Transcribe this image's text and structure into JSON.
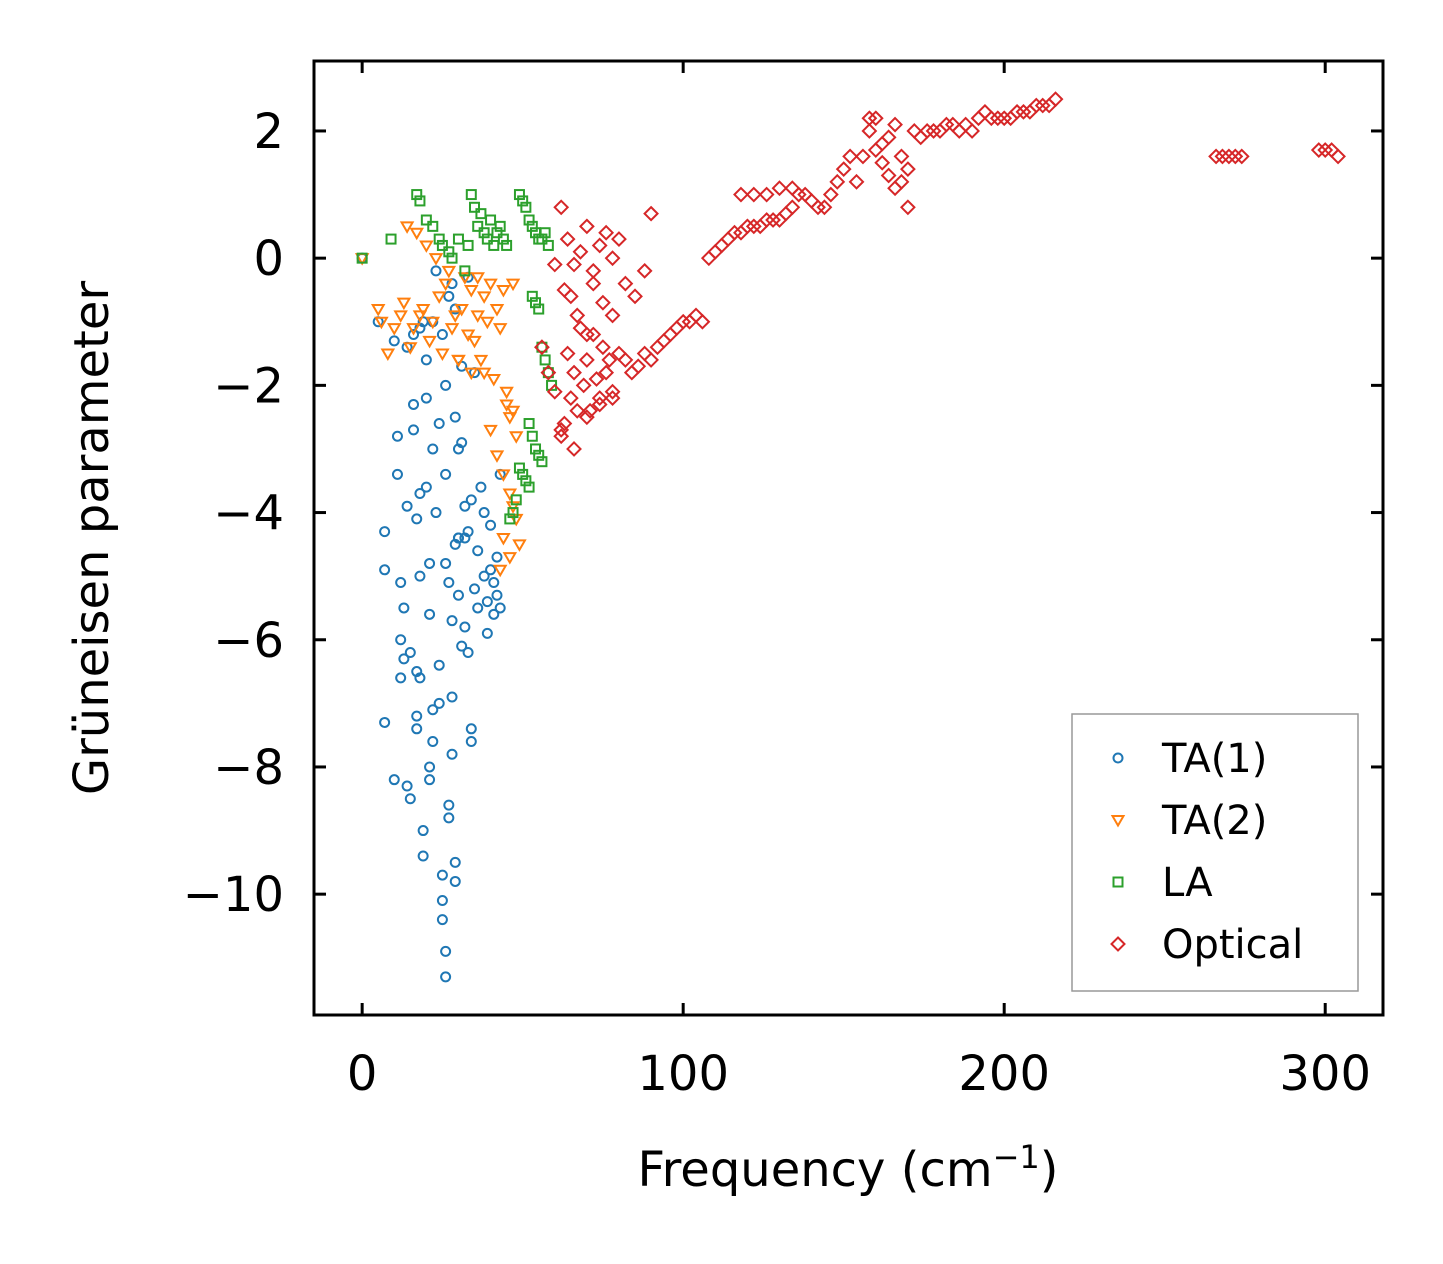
{
  "chart_data": {
    "type": "scatter",
    "title": "",
    "xlabel": "Frequency (cm",
    "xlabel_sup": "−1",
    "xlabel_close": ")",
    "ylabel": "Grüneisen parameter",
    "xlim": [
      -15,
      318
    ],
    "ylim": [
      -11.9,
      3.1
    ],
    "xticks": [
      0,
      100,
      200,
      300
    ],
    "xtick_labels": [
      "0",
      "100",
      "200",
      "300"
    ],
    "yticks": [
      2,
      0,
      -2,
      -4,
      -6,
      -8,
      -10
    ],
    "ytick_labels": [
      "2",
      "0",
      "−2",
      "−4",
      "−6",
      "−8",
      "−10"
    ],
    "legend_position": "lower-right",
    "series": [
      {
        "name": "TA(1)",
        "marker": "circle",
        "color": "#1f77b4",
        "x": [
          0,
          5,
          7,
          7,
          7,
          10,
          10,
          11,
          11,
          12,
          12,
          12,
          13,
          13,
          14,
          14,
          14,
          15,
          15,
          16,
          16,
          17,
          17,
          17,
          18,
          18,
          18,
          18,
          19,
          19,
          19,
          20,
          20,
          20,
          21,
          21,
          21,
          22,
          22,
          22,
          23,
          23,
          24,
          24,
          24,
          25,
          25,
          25,
          25,
          26,
          26,
          26,
          26,
          27,
          27,
          27,
          28,
          28,
          28,
          29,
          29,
          29,
          29,
          30,
          30,
          30,
          31,
          31,
          31,
          32,
          32,
          32,
          33,
          33,
          34,
          34,
          34,
          35,
          35,
          36,
          36,
          37,
          38,
          38,
          39,
          39,
          40,
          40,
          41,
          41,
          42,
          42,
          43,
          43,
          16,
          17,
          21,
          22,
          26,
          27,
          28,
          29,
          30,
          33
        ],
        "y": [
          0,
          -1.0,
          -4.3,
          -4.9,
          -7.3,
          -8.2,
          -1.3,
          -3.4,
          -2.8,
          -5.1,
          -6.0,
          -6.6,
          -6.3,
          -5.5,
          -1.4,
          -3.9,
          -8.3,
          -8.5,
          -6.2,
          -1.2,
          -2.7,
          -7.2,
          -7.4,
          -6.5,
          -1.1,
          -3.7,
          -5.0,
          -6.6,
          -1.0,
          -9.0,
          -9.4,
          -1.6,
          -3.6,
          -2.2,
          -4.8,
          -5.6,
          -8.0,
          -7.1,
          -7.6,
          -1.0,
          -0.2,
          -4.0,
          -6.4,
          -7.0,
          -2.6,
          -9.7,
          -10.4,
          -10.1,
          -1.2,
          -11.3,
          -10.9,
          -3.4,
          -4.8,
          -8.6,
          -8.8,
          -5.1,
          -0.4,
          -5.7,
          -7.8,
          -9.5,
          -9.8,
          -0.8,
          -2.5,
          -3.0,
          -4.4,
          -5.3,
          -6.1,
          -2.9,
          -1.7,
          -4.4,
          -3.9,
          -5.8,
          -4.3,
          -6.2,
          -7.4,
          -7.6,
          -3.8,
          -5.2,
          -1.8,
          -5.5,
          -4.6,
          -3.6,
          -5.0,
          -4.0,
          -5.4,
          -5.9,
          -4.2,
          -4.9,
          -5.1,
          -5.6,
          -5.3,
          -4.7,
          -3.4,
          -5.5,
          -2.3,
          -4.1,
          -8.2,
          -3.0,
          -2.0,
          -0.6,
          -6.9,
          -4.5,
          -4.4,
          -0.3
        ],
        "open": true
      },
      {
        "name": "TA(2)",
        "marker": "triangle-down",
        "color": "#ff7f0e",
        "x": [
          0,
          5,
          6,
          8,
          10,
          12,
          13,
          14,
          15,
          16,
          17,
          18,
          19,
          20,
          21,
          22,
          23,
          24,
          25,
          26,
          27,
          28,
          29,
          30,
          31,
          32,
          33,
          34,
          35,
          36,
          37,
          38,
          39,
          40,
          41,
          42,
          43,
          44,
          45,
          46,
          47,
          48,
          30,
          34,
          36,
          38,
          40,
          42,
          44,
          46,
          48,
          44,
          46,
          47,
          49,
          43,
          45,
          47
        ],
        "y": [
          0,
          -0.8,
          -1.0,
          -1.5,
          -1.1,
          -0.9,
          -0.7,
          0.5,
          -1.4,
          -1.1,
          0.4,
          -0.9,
          -0.8,
          0.2,
          -1.3,
          -1.0,
          0.0,
          -0.6,
          -1.5,
          -0.4,
          -0.2,
          -1.1,
          -0.9,
          -1.6,
          -0.8,
          -0.3,
          -1.2,
          -0.5,
          -1.3,
          -0.3,
          -1.6,
          -0.6,
          -1.0,
          -0.4,
          -1.9,
          -0.8,
          -1.1,
          -0.5,
          -2.1,
          -2.5,
          -0.4,
          -2.8,
          -1.6,
          -1.8,
          -0.9,
          -1.8,
          -2.7,
          -3.1,
          -3.4,
          -3.7,
          -4.1,
          -4.4,
          -4.7,
          -3.9,
          -4.5,
          -4.9,
          -2.3,
          -2.4
        ],
        "open": true
      },
      {
        "name": "LA",
        "marker": "square",
        "color": "#2ca02c",
        "x": [
          0,
          9,
          17,
          18,
          20,
          22,
          24,
          25,
          27,
          28,
          30,
          32,
          33,
          34,
          35,
          36,
          37,
          38,
          39,
          40,
          41,
          42,
          43,
          44,
          45,
          49,
          50,
          51,
          52,
          53,
          54,
          55,
          56,
          57,
          58,
          53,
          54,
          55,
          56,
          57,
          58,
          59,
          52,
          53,
          54,
          55,
          56,
          49,
          50,
          51,
          52,
          48,
          47,
          46
        ],
        "y": [
          0,
          0.3,
          1.0,
          0.9,
          0.6,
          0.5,
          0.3,
          0.2,
          0.1,
          0.0,
          0.3,
          -0.2,
          0.2,
          1.0,
          0.8,
          0.5,
          0.7,
          0.4,
          0.3,
          0.6,
          0.2,
          0.4,
          0.5,
          0.3,
          0.2,
          1.0,
          0.9,
          0.8,
          0.6,
          0.5,
          0.4,
          0.3,
          0.3,
          0.4,
          0.2,
          -0.6,
          -0.7,
          -0.8,
          -1.4,
          -1.6,
          -1.8,
          -2.0,
          -2.6,
          -2.8,
          -3.0,
          -3.1,
          -3.2,
          -3.3,
          -3.4,
          -3.5,
          -3.6,
          -3.8,
          -4.0,
          -4.1
        ],
        "open": true
      },
      {
        "name": "Optical",
        "marker": "diamond",
        "color": "#d62728",
        "x": [
          56,
          58,
          60,
          62,
          63,
          64,
          65,
          66,
          67,
          68,
          69,
          70,
          71,
          72,
          73,
          74,
          75,
          76,
          77,
          78,
          80,
          82,
          84,
          86,
          88,
          90,
          92,
          94,
          96,
          98,
          100,
          102,
          104,
          106,
          108,
          110,
          112,
          114,
          116,
          118,
          120,
          122,
          124,
          126,
          128,
          130,
          132,
          134,
          136,
          138,
          140,
          142,
          144,
          146,
          148,
          150,
          152,
          154,
          156,
          158,
          160,
          162,
          164,
          166,
          168,
          170,
          172,
          174,
          176,
          178,
          180,
          182,
          184,
          186,
          188,
          190,
          192,
          194,
          196,
          198,
          200,
          202,
          204,
          206,
          208,
          210,
          212,
          214,
          216,
          60,
          63,
          65,
          67,
          70,
          72,
          75,
          78,
          82,
          85,
          88,
          90,
          62,
          64,
          66,
          68,
          70,
          72,
          74,
          76,
          78,
          80,
          62,
          66,
          70,
          74,
          78,
          266,
          268,
          270,
          272,
          274,
          298,
          300,
          302,
          304,
          118,
          122,
          126,
          130,
          134,
          160,
          162,
          164,
          158,
          166,
          168,
          170
        ],
        "y": [
          -1.4,
          -1.8,
          -2.1,
          -2.8,
          -2.6,
          -1.5,
          -2.2,
          -1.8,
          -2.4,
          -1.1,
          -2.0,
          -1.6,
          -2.4,
          -1.2,
          -1.9,
          -2.2,
          -1.4,
          -1.8,
          -1.6,
          -2.1,
          -1.5,
          -1.6,
          -1.8,
          -1.7,
          -1.5,
          -1.6,
          -1.4,
          -1.3,
          -1.2,
          -1.1,
          -1.0,
          -1.0,
          -0.9,
          -1.0,
          0.0,
          0.1,
          0.2,
          0.3,
          0.4,
          0.4,
          0.5,
          0.5,
          0.5,
          0.6,
          0.6,
          0.6,
          0.7,
          0.8,
          1.0,
          1.0,
          0.9,
          0.8,
          0.8,
          1.0,
          1.2,
          1.4,
          1.6,
          1.2,
          1.6,
          2.0,
          2.2,
          1.8,
          1.3,
          1.1,
          1.6,
          1.4,
          2.0,
          1.9,
          2.0,
          2.0,
          2.0,
          2.1,
          2.1,
          2.0,
          2.1,
          2.0,
          2.2,
          2.3,
          2.2,
          2.2,
          2.2,
          2.2,
          2.3,
          2.3,
          2.3,
          2.4,
          2.4,
          2.4,
          2.5,
          -0.1,
          -0.5,
          -0.6,
          -0.9,
          -1.2,
          -0.4,
          -0.7,
          -0.9,
          -0.4,
          -0.6,
          -0.2,
          0.7,
          0.8,
          0.3,
          -0.1,
          0.1,
          0.5,
          -0.2,
          0.2,
          0.4,
          0.0,
          0.3,
          -2.7,
          -3.0,
          -2.5,
          -2.3,
          -2.2,
          1.6,
          1.6,
          1.6,
          1.6,
          1.6,
          1.7,
          1.7,
          1.7,
          1.6,
          1.0,
          1.0,
          1.0,
          1.1,
          1.1,
          1.7,
          1.5,
          1.9,
          2.2,
          2.1,
          1.2,
          0.8
        ],
        "open": true
      }
    ]
  }
}
